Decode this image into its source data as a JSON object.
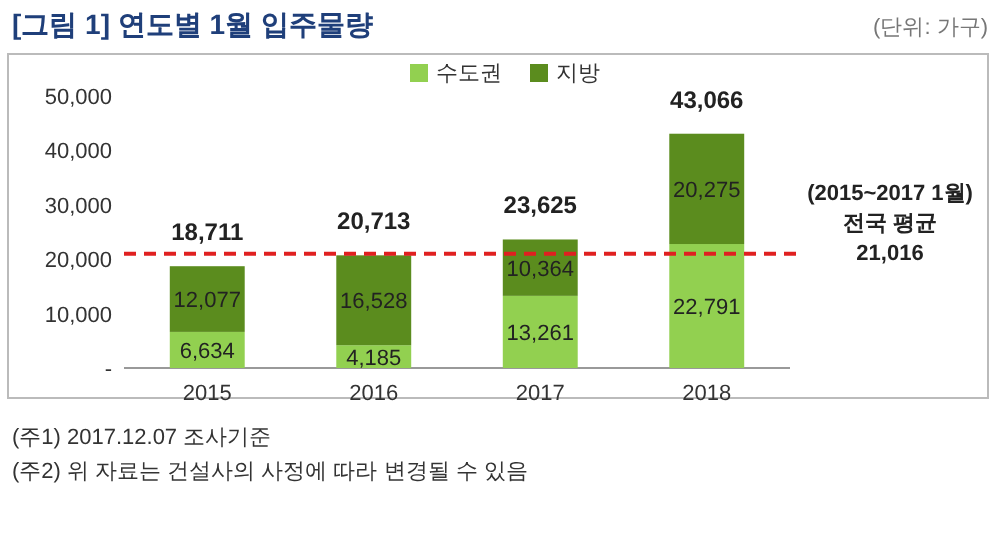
{
  "chart_data": {
    "type": "bar",
    "title": "[그림 1] 연도별 1월 입주물량",
    "subtitle": "(단위: 가구)",
    "categories": [
      "2015",
      "2016",
      "2017",
      "2018"
    ],
    "series": [
      {
        "name": "수도권",
        "color": "#92d050",
        "values": [
          6634,
          4185,
          13261,
          22791
        ],
        "value_labels": [
          "6,634",
          "4,185",
          "13,261",
          "22,791"
        ]
      },
      {
        "name": "지방",
        "color": "#5b8c1e",
        "values": [
          12077,
          16528,
          10364,
          20275
        ],
        "value_labels": [
          "12,077",
          "16,528",
          "10,364",
          "20,275"
        ]
      }
    ],
    "stacked": true,
    "totals": [
      "18,711",
      "20,713",
      "23,625",
      "43,066"
    ],
    "ylim": [
      0,
      50000
    ],
    "yticks": [
      {
        "value": 0,
        "label": "-"
      },
      {
        "value": 10000,
        "label": "10,000"
      },
      {
        "value": 20000,
        "label": "20,000"
      },
      {
        "value": 30000,
        "label": "30,000"
      },
      {
        "value": 40000,
        "label": "40,000"
      },
      {
        "value": 50000,
        "label": "50,000"
      }
    ],
    "ref_lines": [
      {
        "axis": "y",
        "value": 21016,
        "label": "(2015~2017 1월)\n전국 평균\n21,016",
        "color": "#e02020",
        "line_style": "dashed"
      }
    ],
    "legend": "top",
    "grid": false,
    "annotations": [
      "(주1) 2017.12.07 조사기준",
      "(주2) 위 자료는 건설사의 사정에 따라 변경될 수 있음"
    ]
  }
}
